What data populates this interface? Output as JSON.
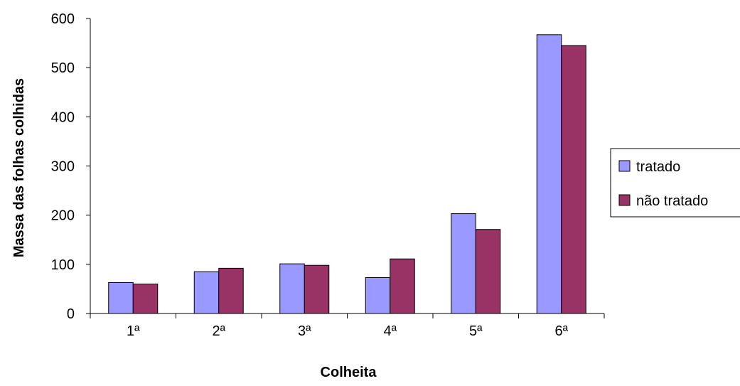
{
  "chart_data": {
    "type": "bar",
    "title": "",
    "xlabel": "Colheita",
    "ylabel": "Massa das folhas colhidas",
    "categories": [
      "1ª",
      "2ª",
      "3ª",
      "4ª",
      "5ª",
      "6ª"
    ],
    "series": [
      {
        "name": "tratado",
        "color": "#9999ff",
        "values": [
          63,
          85,
          101,
          73,
          203,
          567
        ]
      },
      {
        "name": "não tratado",
        "color": "#993366",
        "values": [
          60,
          92,
          98,
          111,
          171,
          545
        ]
      }
    ],
    "ylim": [
      0,
      600
    ],
    "yticks": [
      0,
      100,
      200,
      300,
      400,
      500,
      600
    ],
    "grid": false,
    "legend_position": "right"
  }
}
